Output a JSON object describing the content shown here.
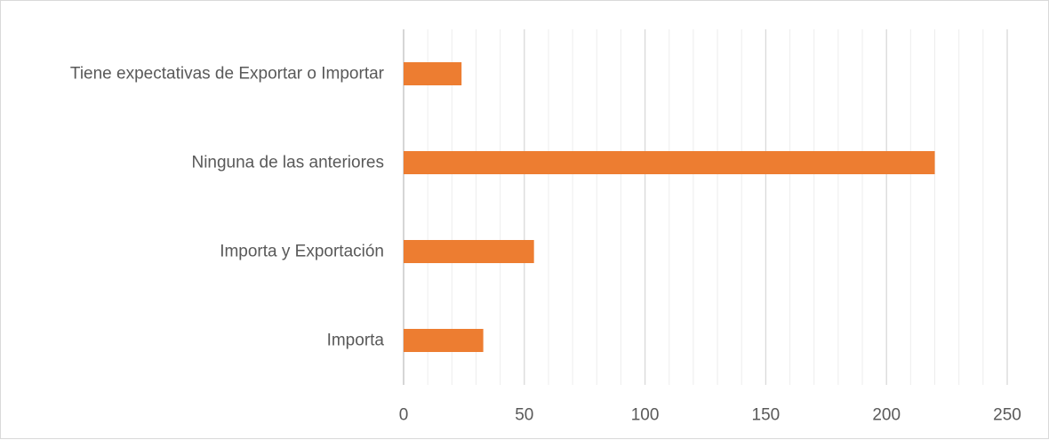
{
  "chart_data": {
    "type": "bar",
    "orientation": "horizontal",
    "title": "",
    "xlabel": "",
    "ylabel": "",
    "categories": [
      "Tiene expectativas de Exportar o Importar",
      "Ninguna de las anteriores",
      "Importa y Exportación",
      "Importa"
    ],
    "values": [
      24,
      220,
      54,
      33
    ],
    "xlim": [
      0,
      250
    ],
    "xticks": [
      "0",
      "50",
      "100",
      "150",
      "200",
      "250"
    ],
    "grid": true,
    "legend": "none",
    "bar_color": "#ED7D31",
    "major_grid_color": "#D9D9D9",
    "minor_grid_color": "#EDEDED",
    "axis_color": "#BFBFBF"
  }
}
